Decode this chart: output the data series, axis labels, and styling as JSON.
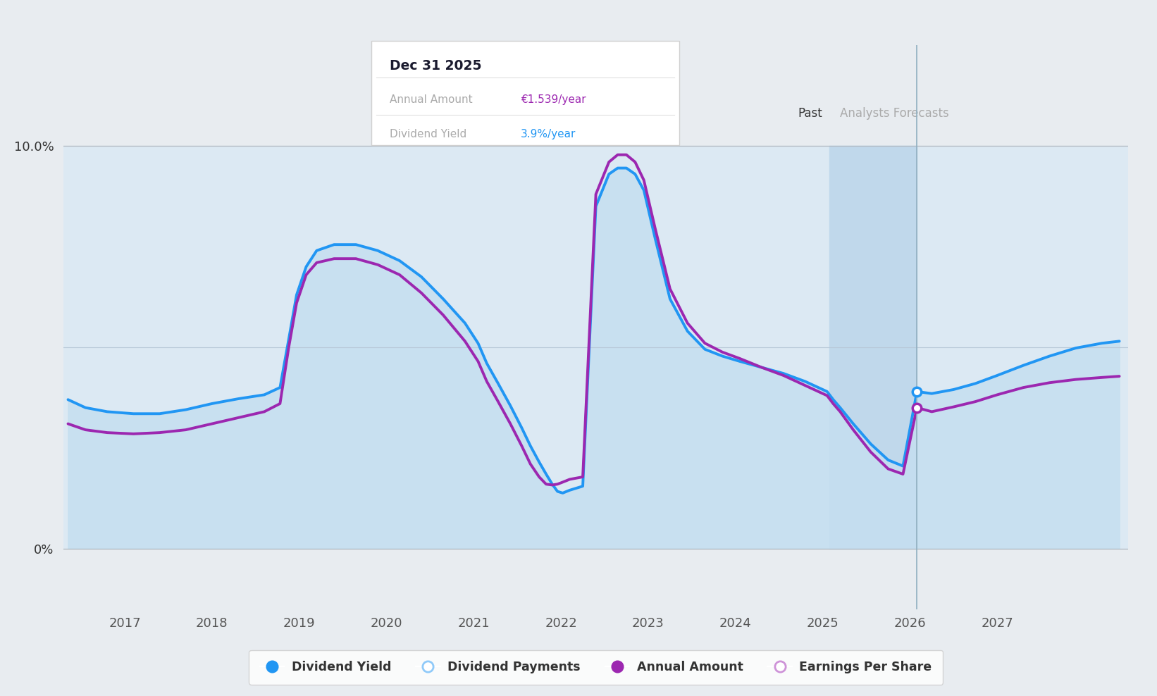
{
  "background_color": "#e8ecf0",
  "chart_bg_color": "#e8ecf0",
  "plot_area_color": "#dce9f3",
  "x_min": 2016.3,
  "x_max": 2028.5,
  "y_min": -1.5,
  "y_max": 12.5,
  "y_data_min": 0,
  "y_data_max": 10.0,
  "xtick_years": [
    2017,
    2018,
    2019,
    2020,
    2021,
    2022,
    2023,
    2024,
    2025,
    2026,
    2027
  ],
  "forecast_start": 2025.08,
  "forecast_end": 2026.08,
  "tooltip_title": "Dec 31 2025",
  "tooltip_row1_label": "Annual Amount",
  "tooltip_row1_value": "€1.539/year",
  "tooltip_row1_color": "#9c27b0",
  "tooltip_row2_label": "Dividend Yield",
  "tooltip_row2_value": "3.9%/year",
  "tooltip_row2_color": "#2196F3",
  "blue_line_color": "#2196F3",
  "purple_line_color": "#9c27b0",
  "fill_color": "#c5dff0",
  "fill_alpha": 0.85,
  "line_width": 2.8,
  "blue_x": [
    2016.35,
    2016.55,
    2016.8,
    2017.1,
    2017.4,
    2017.7,
    2018.0,
    2018.3,
    2018.6,
    2018.78,
    2018.88,
    2018.97,
    2019.08,
    2019.2,
    2019.4,
    2019.65,
    2019.9,
    2020.15,
    2020.4,
    2020.65,
    2020.9,
    2021.05,
    2021.15,
    2021.28,
    2021.42,
    2021.55,
    2021.65,
    2021.75,
    2021.83,
    2021.9,
    2021.96,
    2022.02,
    2022.1,
    2022.25,
    2022.4,
    2022.55,
    2022.65,
    2022.75,
    2022.85,
    2022.95,
    2023.08,
    2023.25,
    2023.45,
    2023.65,
    2023.85,
    2024.05,
    2024.3,
    2024.55,
    2024.8,
    2025.05,
    2025.12,
    2025.2,
    2025.35,
    2025.55,
    2025.75,
    2025.92,
    2026.08,
    2026.25,
    2026.5,
    2026.75,
    2027.0,
    2027.3,
    2027.6,
    2027.9,
    2028.2,
    2028.4
  ],
  "blue_y": [
    3.7,
    3.5,
    3.4,
    3.35,
    3.35,
    3.45,
    3.6,
    3.72,
    3.82,
    4.0,
    5.2,
    6.3,
    7.0,
    7.4,
    7.55,
    7.55,
    7.4,
    7.15,
    6.75,
    6.2,
    5.6,
    5.1,
    4.6,
    4.1,
    3.55,
    3.0,
    2.55,
    2.15,
    1.85,
    1.6,
    1.42,
    1.38,
    1.45,
    1.55,
    8.5,
    9.3,
    9.45,
    9.45,
    9.3,
    8.9,
    7.7,
    6.2,
    5.4,
    4.95,
    4.78,
    4.65,
    4.5,
    4.35,
    4.15,
    3.9,
    3.7,
    3.5,
    3.1,
    2.6,
    2.2,
    2.05,
    3.9,
    3.85,
    3.95,
    4.1,
    4.3,
    4.55,
    4.78,
    4.98,
    5.1,
    5.15
  ],
  "purple_x": [
    2016.35,
    2016.55,
    2016.8,
    2017.1,
    2017.4,
    2017.7,
    2018.0,
    2018.3,
    2018.6,
    2018.78,
    2018.88,
    2018.97,
    2019.08,
    2019.2,
    2019.4,
    2019.65,
    2019.9,
    2020.15,
    2020.4,
    2020.65,
    2020.9,
    2021.05,
    2021.15,
    2021.28,
    2021.42,
    2021.55,
    2021.65,
    2021.75,
    2021.83,
    2021.9,
    2021.96,
    2022.02,
    2022.1,
    2022.25,
    2022.4,
    2022.55,
    2022.65,
    2022.75,
    2022.85,
    2022.95,
    2023.08,
    2023.25,
    2023.45,
    2023.65,
    2023.85,
    2024.05,
    2024.3,
    2024.55,
    2024.8,
    2025.05,
    2025.12,
    2025.2,
    2025.35,
    2025.55,
    2025.75,
    2025.92,
    2026.08,
    2026.25,
    2026.5,
    2026.75,
    2027.0,
    2027.3,
    2027.6,
    2027.9,
    2028.2,
    2028.4
  ],
  "purple_y": [
    3.1,
    2.95,
    2.88,
    2.85,
    2.88,
    2.95,
    3.1,
    3.25,
    3.4,
    3.6,
    5.0,
    6.1,
    6.8,
    7.1,
    7.2,
    7.2,
    7.05,
    6.8,
    6.35,
    5.8,
    5.15,
    4.65,
    4.15,
    3.65,
    3.1,
    2.55,
    2.1,
    1.78,
    1.6,
    1.58,
    1.6,
    1.65,
    1.72,
    1.78,
    8.8,
    9.6,
    9.78,
    9.78,
    9.6,
    9.15,
    7.95,
    6.45,
    5.6,
    5.1,
    4.88,
    4.72,
    4.5,
    4.3,
    4.05,
    3.8,
    3.6,
    3.4,
    2.95,
    2.4,
    1.98,
    1.85,
    3.5,
    3.4,
    3.52,
    3.65,
    3.82,
    4.0,
    4.12,
    4.2,
    4.25,
    4.28
  ],
  "dot_blue_x": 2026.08,
  "dot_blue_y": 3.9,
  "dot_purple_x": 2026.08,
  "dot_purple_y": 3.5,
  "legend_items": [
    {
      "label": "Dividend Yield",
      "fill_color": "#2196F3",
      "edge_color": "#2196F3"
    },
    {
      "label": "Dividend Payments",
      "fill_color": "#ffffff",
      "edge_color": "#90caf9"
    },
    {
      "label": "Annual Amount",
      "fill_color": "#9c27b0",
      "edge_color": "#9c27b0"
    },
    {
      "label": "Earnings Per Share",
      "fill_color": "#ffffff",
      "edge_color": "#ce93d8"
    }
  ]
}
